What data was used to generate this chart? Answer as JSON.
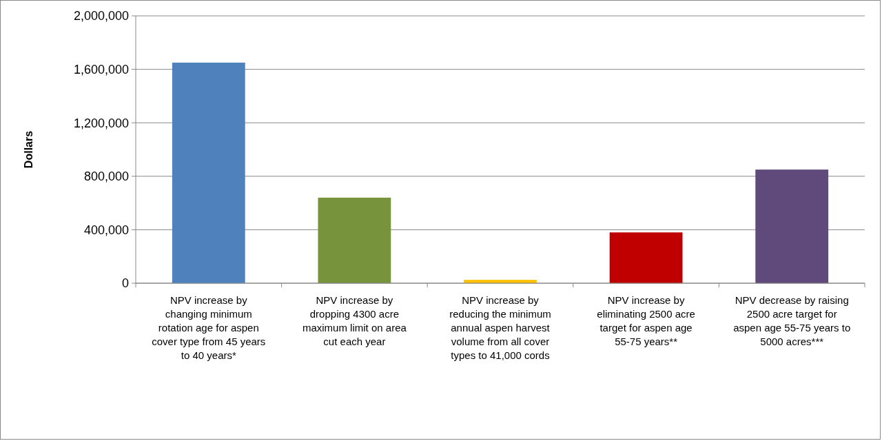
{
  "chart_data": {
    "type": "bar",
    "ylabel": "Dollars",
    "categories": [
      "NPV increase by changing minimum rotation age for aspen cover type from 45 years to 40 years*",
      "NPV increase by dropping 4300 acre maximum limit on area cut each year",
      "NPV increase by reducing the minimum annual aspen harvest volume from all cover types to 41,000 cords",
      "NPV increase by eliminating 2500 acre target for aspen age 55-75 years**",
      "NPV decrease by raising 2500 acre target for aspen age 55-75 years to 5000 acres***"
    ],
    "values": [
      1650000,
      640000,
      25000,
      380000,
      850000
    ],
    "colors": [
      "#4f81bd",
      "#77933c",
      "#ffc000",
      "#c00000",
      "#604a7b"
    ],
    "ylim": [
      0,
      2000000
    ],
    "yticks": [
      {
        "value": 0,
        "label": "0"
      },
      {
        "value": 400000,
        "label": "400,000"
      },
      {
        "value": 800000,
        "label": "800,000"
      },
      {
        "value": 1200000,
        "label": "1,200,000"
      },
      {
        "value": 1600000,
        "label": "1,600,000"
      },
      {
        "value": 2000000,
        "label": "2,000,000"
      }
    ],
    "grid": "y"
  }
}
